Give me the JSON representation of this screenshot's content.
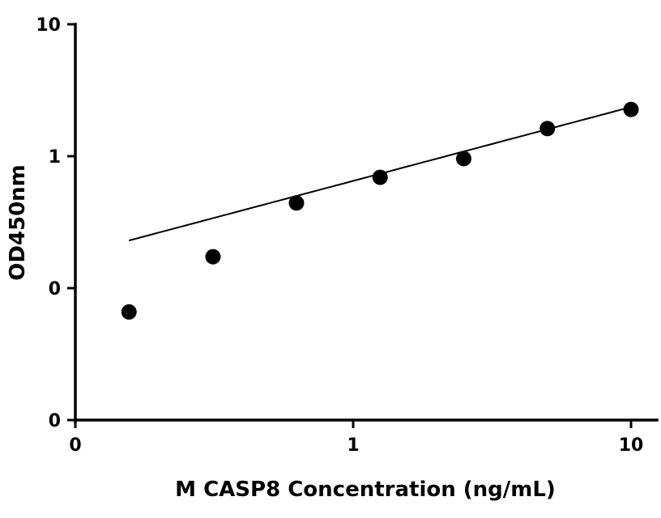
{
  "chart_data": {
    "type": "scatter",
    "title": "",
    "xlabel": "M CASP8 Concentration (ng/mL)",
    "ylabel": "OD450nm",
    "x_scale": "log",
    "y_scale": "log",
    "xlim": [
      0.1,
      12
    ],
    "ylim": [
      0.01,
      10
    ],
    "x_ticks": [
      {
        "value": 0.1,
        "label": "0"
      },
      {
        "value": 1,
        "label": "1"
      },
      {
        "value": 10,
        "label": "10"
      }
    ],
    "y_ticks": [
      {
        "value": 0.01,
        "label": "0"
      },
      {
        "value": 0.1,
        "label": "0"
      },
      {
        "value": 1,
        "label": "1"
      },
      {
        "value": 10,
        "label": "10"
      }
    ],
    "grid": false,
    "series": [
      {
        "x": [
          0.156,
          0.313,
          0.625,
          1.25,
          2.5,
          5,
          10
        ],
        "y": [
          0.066,
          0.173,
          0.442,
          0.692,
          0.959,
          1.62,
          2.26
        ]
      }
    ],
    "fit_curve": {
      "type": "power",
      "coefficient": 0.65,
      "exponent": 0.56,
      "x_range": [
        0.156,
        10
      ]
    },
    "colors": {
      "points": "#000000",
      "curve": "#000000",
      "axes": "#000000"
    }
  }
}
